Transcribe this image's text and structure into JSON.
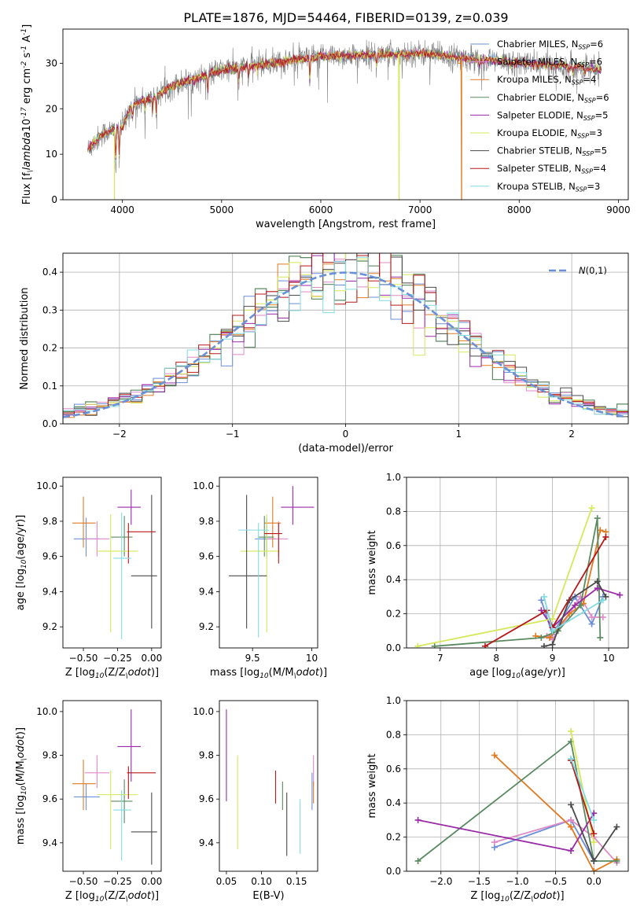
{
  "figure": {
    "title": "PLATE=1876, MJD=54464, FIBERID=0139, z=0.039"
  },
  "models": [
    {
      "name": "Chabrier MILES, N$_{SSP}$=6",
      "color": "#6b8fd8"
    },
    {
      "name": "Salpeter MILES, N$_{SSP}$=6",
      "color": "#e08ac8"
    },
    {
      "name": "Kroupa MILES, N$_{SSP}$=4",
      "color": "#e07a20"
    },
    {
      "name": "Chabrier ELODIE, N$_{SSP}$=6",
      "color": "#5a8a60"
    },
    {
      "name": "Salpeter ELODIE, N$_{SSP}$=5",
      "color": "#9a2aa8"
    },
    {
      "name": "Kroupa ELODIE, N$_{SSP}$=3",
      "color": "#d6e85a"
    },
    {
      "name": "Chabrier STELIB, N$_{SSP}$=5",
      "color": "#4a4a4a"
    },
    {
      "name": "Salpeter STELIB, N$_{SSP}$=4",
      "color": "#b81818"
    },
    {
      "name": "Kroupa STELIB, N$_{SSP}$=3",
      "color": "#80dce0"
    }
  ],
  "chart_data": [
    {
      "type": "line",
      "id": "spectrum",
      "xlabel": "wavelength [Angstrom, rest frame]",
      "ylabel": "Flux [f$_\\lambda$10$^{-17}$ erg cm$^{-2}$ s$^{-1}$ A$^{-1}$]",
      "xlim": [
        3400,
        9100
      ],
      "ylim": [
        0,
        37.5
      ],
      "xticks": [
        4000,
        5000,
        6000,
        7000,
        8000,
        9000
      ],
      "yticks": [
        0,
        10,
        20,
        30
      ],
      "continuum": [
        [
          3650,
          11
        ],
        [
          3800,
          14.5
        ],
        [
          4000,
          16
        ],
        [
          4100,
          21
        ],
        [
          4300,
          22.5
        ],
        [
          4500,
          25
        ],
        [
          4800,
          27
        ],
        [
          5000,
          28.5
        ],
        [
          5500,
          30
        ],
        [
          6000,
          31.5
        ],
        [
          6500,
          31.8
        ],
        [
          7000,
          32.2
        ],
        [
          7500,
          31
        ],
        [
          8000,
          30
        ],
        [
          8500,
          29.5
        ],
        [
          8830,
          28.5
        ]
      ],
      "absorption_lines": [
        [
          3933,
          8
        ],
        [
          3968,
          8
        ],
        [
          4102,
          4
        ],
        [
          4227,
          3
        ],
        [
          4304,
          4
        ],
        [
          4340,
          5
        ],
        [
          4861,
          5
        ],
        [
          5175,
          4
        ],
        [
          5270,
          3
        ],
        [
          5890,
          6
        ],
        [
          6563,
          3
        ],
        [
          7600,
          2
        ],
        [
          8500,
          2
        ],
        [
          8542,
          2
        ],
        [
          8662,
          2
        ]
      ],
      "dropouts": [
        {
          "wavelength": 6790,
          "model_index": 5
        },
        {
          "wavelength": 7420,
          "model_index": 2
        },
        {
          "wavelength": 3920,
          "model_index": 5
        }
      ]
    },
    {
      "type": "histogram",
      "id": "residuals",
      "xlabel": "(data-model)/error",
      "ylabel": "Normed distribution",
      "xlim": [
        -2.5,
        2.5
      ],
      "ylim": [
        0,
        0.45
      ],
      "xticks": [
        -2,
        -1,
        0,
        1,
        2
      ],
      "yticks": [
        0,
        0.1,
        0.2,
        0.3,
        0.4
      ],
      "bin_width": 0.1,
      "reference": {
        "name": "$\\mathcal{N}(0,1)$",
        "mean": 0,
        "sigma": 1,
        "style": "dashed"
      }
    },
    {
      "type": "scatter",
      "id": "z-age",
      "xlabel": "Z [log$_{10}$(Z/Z$_\\odot$)]",
      "ylabel": "age  [log$_{10}$(age/yr)]",
      "xlim": [
        -0.65,
        0.07
      ],
      "ylim": [
        9.08,
        10.05
      ],
      "xticks": [
        -0.5,
        -0.25,
        0.0
      ],
      "yticks": [
        9.2,
        9.4,
        9.6,
        9.8,
        10.0
      ],
      "points": [
        {
          "x": -0.48,
          "y": 9.7,
          "ex": [
            -0.57,
            -0.38
          ],
          "ey": [
            9.6,
            9.82
          ]
        },
        {
          "x": -0.4,
          "y": 9.7,
          "ex": [
            -0.49,
            -0.31
          ],
          "ey": [
            9.6,
            9.8
          ]
        },
        {
          "x": -0.5,
          "y": 9.79,
          "ex": [
            -0.58,
            -0.41
          ],
          "ey": [
            9.65,
            9.94
          ]
        },
        {
          "x": -0.2,
          "y": 9.71,
          "ex": [
            -0.3,
            -0.14
          ],
          "ey": [
            9.6,
            9.83
          ]
        },
        {
          "x": -0.15,
          "y": 9.88,
          "ex": [
            -0.25,
            -0.08
          ],
          "ey": [
            9.78,
            9.98
          ]
        },
        {
          "x": -0.3,
          "y": 9.63,
          "ex": [
            -0.4,
            -0.1
          ],
          "ey": [
            9.17,
            9.84
          ]
        },
        {
          "x": 0.0,
          "y": 9.49,
          "ex": [
            -0.15,
            0.04
          ],
          "ey": [
            9.19,
            9.95
          ]
        },
        {
          "x": -0.17,
          "y": 9.74,
          "ex": [
            -0.18,
            0.03
          ],
          "ey": [
            9.56,
            9.79
          ]
        },
        {
          "x": -0.22,
          "y": 9.59,
          "ex": [
            -0.28,
            -0.15
          ],
          "ey": [
            9.13,
            9.85
          ]
        }
      ]
    },
    {
      "type": "scatter",
      "id": "mass-age",
      "xlabel": "mass [log$_{10}$(M/M$_\\odot$)]",
      "ylabel": "",
      "xlim": [
        9.22,
        10.05
      ],
      "ylim": [
        9.08,
        10.05
      ],
      "xticks": [
        9.5,
        10.0
      ],
      "yticks": [
        9.2,
        9.4,
        9.6,
        9.8,
        10.0
      ],
      "points": [
        {
          "x": 9.62,
          "y": 9.7,
          "ex": [
            9.52,
            9.7
          ],
          "ey": [
            9.6,
            9.82
          ]
        },
        {
          "x": 9.72,
          "y": 9.7,
          "ex": [
            9.62,
            9.8
          ],
          "ey": [
            9.6,
            9.8
          ]
        },
        {
          "x": 9.67,
          "y": 9.79,
          "ex": [
            9.6,
            9.74
          ],
          "ey": [
            9.65,
            9.94
          ]
        },
        {
          "x": 9.6,
          "y": 9.71,
          "ex": [
            9.55,
            9.68
          ],
          "ey": [
            9.6,
            9.83
          ]
        },
        {
          "x": 9.84,
          "y": 9.88,
          "ex": [
            9.74,
            10.02
          ],
          "ey": [
            9.78,
            10.0
          ]
        },
        {
          "x": 9.62,
          "y": 9.63,
          "ex": [
            9.4,
            9.73
          ],
          "ey": [
            9.17,
            9.84
          ]
        },
        {
          "x": 9.45,
          "y": 9.49,
          "ex": [
            9.3,
            9.62
          ],
          "ey": [
            9.19,
            9.95
          ]
        },
        {
          "x": 9.72,
          "y": 9.73,
          "ex": [
            9.6,
            9.75
          ],
          "ey": [
            9.56,
            9.79
          ]
        },
        {
          "x": 9.55,
          "y": 9.75,
          "ex": [
            9.38,
            9.64
          ],
          "ey": [
            9.14,
            9.79
          ]
        }
      ]
    },
    {
      "type": "line",
      "id": "age-weight",
      "xlabel": "age  [log$_{10}$(age/yr)]",
      "ylabel": "mass weight",
      "xlim": [
        6.4,
        10.35
      ],
      "ylim": [
        0,
        1.0
      ],
      "xticks": [
        7,
        8,
        9,
        10
      ],
      "yticks": [
        0.0,
        0.2,
        0.4,
        0.6,
        0.8,
        1.0
      ],
      "series": [
        {
          "model_index": 0,
          "x": [
            8.8,
            9.0,
            9.4,
            9.7,
            9.9
          ],
          "y": [
            0.28,
            0.08,
            0.3,
            0.14,
            0.3
          ]
        },
        {
          "model_index": 1,
          "x": [
            8.9,
            9.0,
            9.5,
            9.7,
            9.9
          ],
          "y": [
            0.07,
            0.05,
            0.3,
            0.18,
            0.18
          ]
        },
        {
          "model_index": 2,
          "x": [
            8.7,
            8.95,
            9.3,
            9.55,
            9.85,
            9.95
          ],
          "y": [
            0.07,
            0.06,
            0.2,
            0.26,
            0.69,
            0.68
          ]
        },
        {
          "model_index": 3,
          "x": [
            6.9,
            8.8,
            9.1,
            9.5,
            9.8,
            9.85
          ],
          "y": [
            0.01,
            0.06,
            0.1,
            0.25,
            0.76,
            0.06
          ]
        },
        {
          "model_index": 4,
          "x": [
            8.8,
            9.0,
            9.4,
            9.8,
            10.2
          ],
          "y": [
            0.22,
            0.12,
            0.25,
            0.35,
            0.31
          ]
        },
        {
          "model_index": 5,
          "x": [
            6.6,
            9.0,
            9.7
          ],
          "y": [
            0.01,
            0.17,
            0.82
          ]
        },
        {
          "model_index": 6,
          "x": [
            8.85,
            9.0,
            9.3,
            9.8,
            9.95
          ],
          "y": [
            0.01,
            0.02,
            0.28,
            0.39,
            0.3
          ]
        },
        {
          "model_index": 7,
          "x": [
            7.8,
            8.9,
            9.0,
            9.95
          ],
          "y": [
            0.01,
            0.22,
            0.12,
            0.65
          ]
        },
        {
          "model_index": 8,
          "x": [
            8.85,
            9.0,
            9.9
          ],
          "y": [
            0.3,
            0.1,
            0.28
          ]
        }
      ]
    },
    {
      "type": "scatter",
      "id": "z-mass",
      "xlabel": "Z [log$_{10}$(Z/Z$_\\odot$)]",
      "ylabel": "mass [log$_{10}$(M/M$_\\odot$)]",
      "xlim": [
        -0.65,
        0.07
      ],
      "ylim": [
        9.27,
        10.05
      ],
      "xticks": [
        -0.5,
        -0.25,
        0.0
      ],
      "yticks": [
        9.4,
        9.6,
        9.8,
        10.0
      ],
      "points": [
        {
          "x": -0.48,
          "y": 9.61,
          "ex": [
            -0.57,
            -0.38
          ],
          "ey": [
            9.55,
            9.67
          ]
        },
        {
          "x": -0.4,
          "y": 9.72,
          "ex": [
            -0.49,
            -0.31
          ],
          "ey": [
            9.65,
            9.8
          ]
        },
        {
          "x": -0.5,
          "y": 9.67,
          "ex": [
            -0.58,
            -0.41
          ],
          "ey": [
            9.55,
            9.78
          ]
        },
        {
          "x": -0.2,
          "y": 9.59,
          "ex": [
            -0.3,
            -0.14
          ],
          "ey": [
            9.49,
            9.69
          ]
        },
        {
          "x": -0.15,
          "y": 9.84,
          "ex": [
            -0.25,
            -0.08
          ],
          "ey": [
            9.68,
            10.01
          ]
        },
        {
          "x": -0.3,
          "y": 9.62,
          "ex": [
            -0.4,
            -0.1
          ],
          "ey": [
            9.37,
            9.73
          ]
        },
        {
          "x": 0.0,
          "y": 9.45,
          "ex": [
            -0.15,
            0.04
          ],
          "ey": [
            9.3,
            9.63
          ]
        },
        {
          "x": -0.17,
          "y": 9.72,
          "ex": [
            -0.18,
            0.03
          ],
          "ey": [
            9.6,
            9.75
          ]
        },
        {
          "x": -0.22,
          "y": 9.55,
          "ex": [
            -0.28,
            -0.15
          ],
          "ey": [
            9.32,
            9.64
          ]
        }
      ]
    },
    {
      "type": "scatter",
      "id": "ebv-mass",
      "xlabel": "E(B-V)",
      "ylabel": "",
      "xlim": [
        0.04,
        0.18
      ],
      "ylim": [
        9.27,
        10.05
      ],
      "xticks": [
        0.05,
        0.1,
        0.15
      ],
      "yticks": [
        9.4,
        9.6,
        9.8,
        10.0
      ],
      "points": [
        {
          "x": 0.05,
          "y": 9.8,
          "ey": [
            9.59,
            10.01
          ],
          "model_index": 4
        },
        {
          "x": 0.066,
          "y": 9.59,
          "ey": [
            9.37,
            9.8
          ],
          "model_index": 5
        },
        {
          "x": 0.12,
          "y": 9.65,
          "ey": [
            9.58,
            9.73
          ],
          "model_index": 7
        },
        {
          "x": 0.13,
          "y": 9.61,
          "ey": [
            9.55,
            9.68
          ],
          "model_index": 3
        },
        {
          "x": 0.136,
          "y": 9.49,
          "ey": [
            9.34,
            9.63
          ],
          "model_index": 6
        },
        {
          "x": 0.155,
          "y": 9.47,
          "ey": [
            9.35,
            9.6
          ],
          "model_index": 8
        },
        {
          "x": 0.172,
          "y": 9.64,
          "ey": [
            9.55,
            9.72
          ],
          "model_index": 0
        },
        {
          "x": 0.174,
          "y": 9.74,
          "ey": [
            9.66,
            9.8
          ],
          "model_index": 1
        },
        {
          "x": 0.174,
          "y": 9.63,
          "ey": [
            9.58,
            9.68
          ],
          "model_index": 2
        }
      ]
    },
    {
      "type": "line",
      "id": "z-weight",
      "xlabel": "Z [log$_{10}$(Z/Z$_\\odot$)]",
      "ylabel": "mass weight",
      "xlim": [
        -2.45,
        0.45
      ],
      "ylim": [
        0,
        1.0
      ],
      "xticks": [
        -2.0,
        -1.5,
        -1.0,
        -0.5,
        0.0
      ],
      "yticks": [
        0.0,
        0.2,
        0.4,
        0.6,
        0.8,
        1.0
      ],
      "series": [
        {
          "model_index": 0,
          "x": [
            -1.3,
            -0.3,
            0.0
          ],
          "y": [
            0.14,
            0.3,
            0.06
          ]
        },
        {
          "model_index": 1,
          "x": [
            -1.3,
            -0.3,
            0.0,
            0.3
          ],
          "y": [
            0.17,
            0.3,
            0.2,
            0.05
          ]
        },
        {
          "model_index": 2,
          "x": [
            -1.3,
            -0.3,
            0.0,
            0.3
          ],
          "y": [
            0.68,
            0.26,
            0.0,
            0.07
          ]
        },
        {
          "model_index": 3,
          "x": [
            -2.3,
            -0.3,
            0.0,
            0.3
          ],
          "y": [
            0.06,
            0.76,
            0.06,
            0.06
          ]
        },
        {
          "model_index": 4,
          "x": [
            -2.3,
            -0.3,
            0.0
          ],
          "y": [
            0.3,
            0.12,
            0.34
          ]
        },
        {
          "model_index": 5,
          "x": [
            -0.3,
            0.0
          ],
          "y": [
            0.82,
            0.17
          ]
        },
        {
          "model_index": 6,
          "x": [
            -0.3,
            0.0,
            0.3
          ],
          "y": [
            0.39,
            0.06,
            0.26
          ]
        },
        {
          "model_index": 7,
          "x": [
            -0.3,
            0.0
          ],
          "y": [
            0.65,
            0.22
          ]
        },
        {
          "model_index": 8,
          "x": [
            -0.3,
            0.0
          ],
          "y": [
            0.66,
            0.3
          ]
        }
      ]
    }
  ]
}
